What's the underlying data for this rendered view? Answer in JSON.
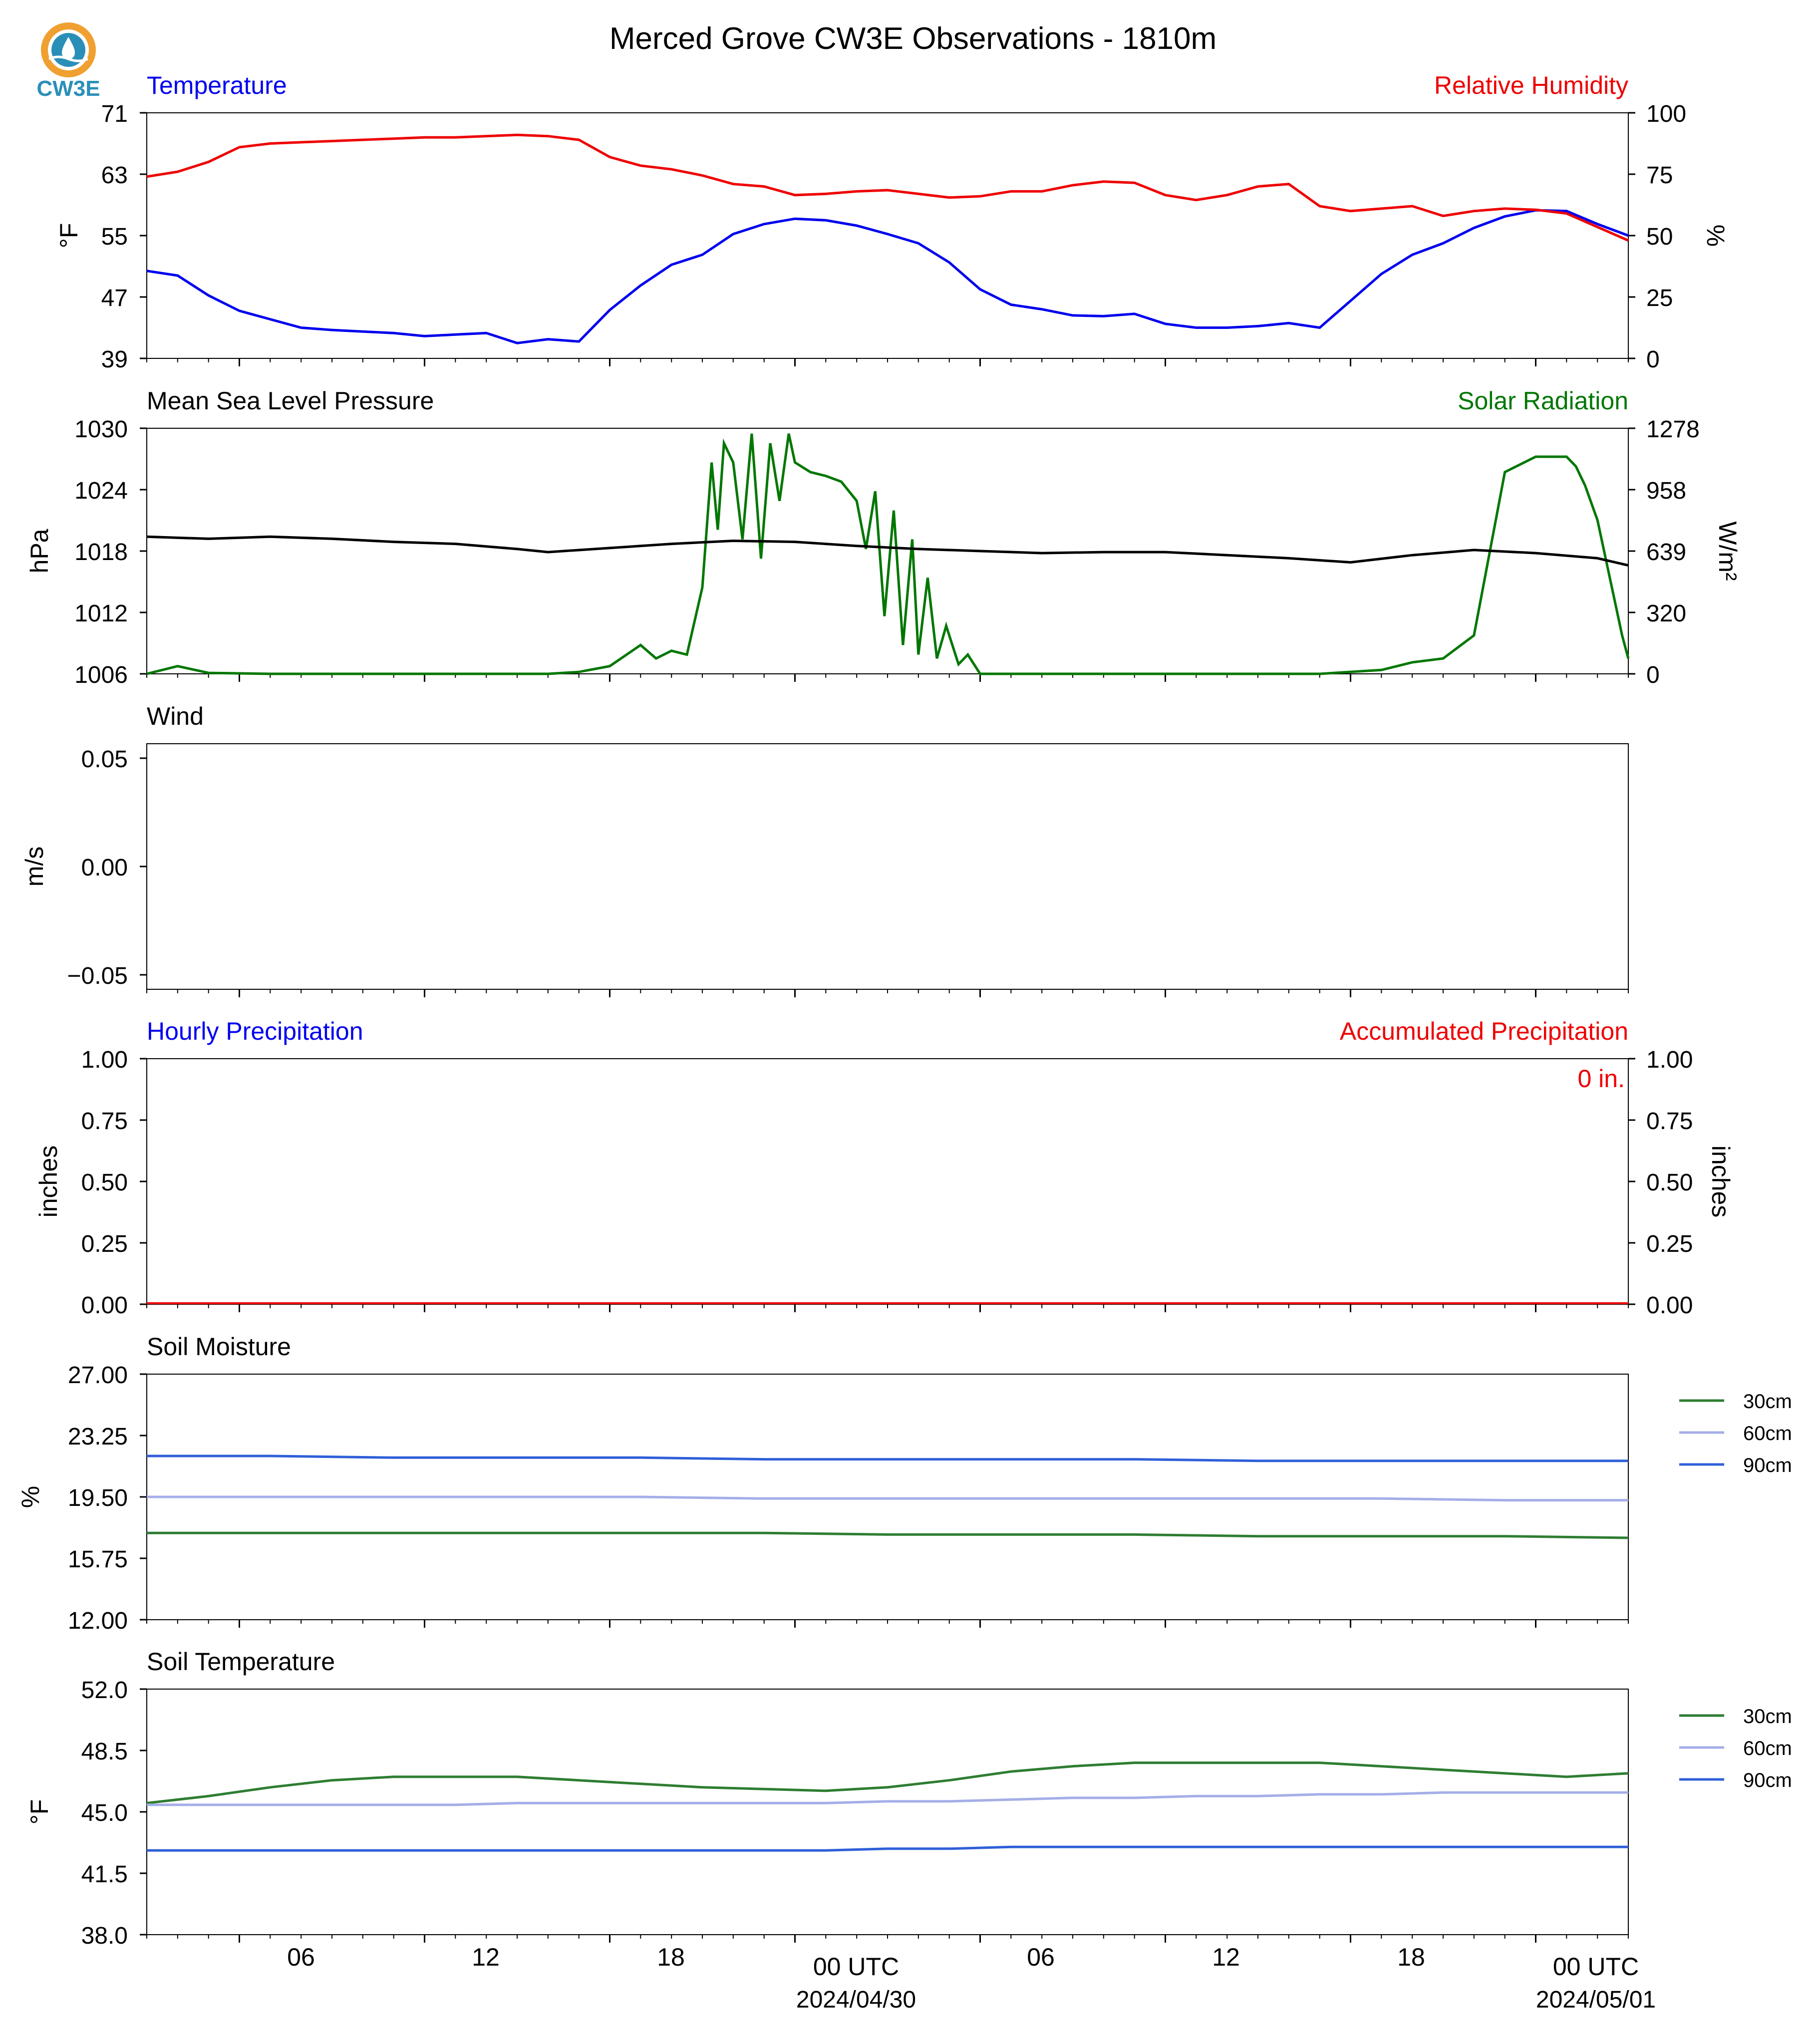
{
  "title": "Merced Grove CW3E Observations - 1810m",
  "logo": {
    "text": "CW3E",
    "colors": {
      "ring": "#f0a030",
      "water": "#2a8fb8",
      "text": "#2a8fb8"
    }
  },
  "time_axis": {
    "tick_labels": [
      "06",
      "12",
      "18",
      "00 UTC",
      "06",
      "12",
      "18",
      "00 UTC"
    ],
    "date_labels": [
      "2024/04/30",
      "2024/05/01"
    ]
  },
  "colors": {
    "temperature": "#0000ee",
    "humidity": "#ee0000",
    "pressure": "#000000",
    "solar": "#007700",
    "soil_30": "#2e7d32",
    "soil_60": "#a4aee8",
    "soil_90": "#2f5fd8"
  },
  "chart_data": [
    {
      "type": "line",
      "title_left": "Temperature",
      "title_right": "Relative Humidity",
      "ylabel": "°F",
      "ylabel_right": "%",
      "ylim": [
        39,
        71
      ],
      "ylim_right": [
        0,
        100
      ],
      "yticks": [
        "71",
        "63",
        "55",
        "47",
        "39"
      ],
      "yticks_right": [
        "100",
        "75",
        "50",
        "25",
        "0"
      ],
      "x_hours": [
        0,
        1,
        2,
        3,
        4,
        5,
        6,
        7,
        8,
        9,
        10,
        11,
        12,
        13,
        14,
        15,
        16,
        17,
        18,
        19,
        20,
        21,
        22,
        23,
        24,
        25,
        26,
        27,
        28,
        29,
        30,
        31,
        32,
        33,
        34,
        35,
        36,
        37,
        38,
        39,
        40,
        41,
        42,
        43,
        44,
        45,
        46,
        47,
        48
      ],
      "series": [
        {
          "name": "Temperature",
          "axis": "left",
          "values": [
            50.4,
            49.8,
            47.2,
            45.2,
            44.1,
            43.0,
            42.7,
            42.5,
            42.3,
            41.9,
            42.1,
            42.3,
            41.0,
            41.5,
            41.2,
            45.3,
            48.5,
            51.2,
            52.5,
            55.2,
            56.5,
            57.2,
            57.0,
            56.3,
            55.2,
            54.0,
            51.5,
            48.0,
            46.0,
            45.4,
            44.6,
            44.5,
            44.8,
            43.5,
            43.0,
            43.0,
            43.2,
            43.6,
            43.0,
            46.5,
            50.0,
            52.5,
            54.0,
            56.0,
            57.5,
            58.3,
            58.2,
            56.5,
            55.0
          ]
        },
        {
          "name": "Relative Humidity",
          "axis": "right",
          "values": [
            74.0,
            76.0,
            80.0,
            86.0,
            87.5,
            88.0,
            88.5,
            89.0,
            89.5,
            90.0,
            90.0,
            90.5,
            91.0,
            90.5,
            89.0,
            82.0,
            78.5,
            77.0,
            74.5,
            71.0,
            70.0,
            66.5,
            67.0,
            68.0,
            68.5,
            67.0,
            65.5,
            66.0,
            68.0,
            68.0,
            70.5,
            72.0,
            71.5,
            66.5,
            64.5,
            66.5,
            70.0,
            71.0,
            62.0,
            60.0,
            61.0,
            62.0,
            58.0,
            60.0,
            61.0,
            60.5,
            59.0,
            53.5,
            48.0
          ]
        }
      ]
    },
    {
      "type": "line",
      "title_left": "Mean Sea Level Pressure",
      "title_right": "Solar Radiation",
      "ylabel": "hPa",
      "ylabel_right": "W/m²",
      "ylim": [
        1006,
        1030
      ],
      "ylim_right": [
        0,
        1278
      ],
      "yticks": [
        "1030",
        "1024",
        "1018",
        "1012",
        "1006"
      ],
      "yticks_right": [
        "1278",
        "958",
        "639",
        "320",
        "0"
      ],
      "series": [
        {
          "name": "Mean Sea Level Pressure",
          "axis": "left",
          "x_hours": [
            0,
            2,
            4,
            6,
            8,
            10,
            12,
            13,
            15,
            17,
            19,
            21,
            23,
            25,
            27,
            29,
            31,
            33,
            35,
            37,
            39,
            41,
            43,
            45,
            47,
            48
          ],
          "values": [
            1019.4,
            1019.2,
            1019.4,
            1019.2,
            1018.9,
            1018.7,
            1018.2,
            1017.9,
            1018.3,
            1018.7,
            1019.0,
            1018.9,
            1018.5,
            1018.2,
            1018.0,
            1017.8,
            1017.9,
            1017.9,
            1017.6,
            1017.3,
            1016.9,
            1017.6,
            1018.1,
            1017.8,
            1017.3,
            1016.6
          ]
        },
        {
          "name": "Solar Radiation",
          "axis": "right",
          "x_hours": [
            0,
            1,
            2,
            4,
            6,
            8,
            10,
            12,
            13,
            14,
            15,
            16,
            16.5,
            17,
            17.5,
            18,
            18.3,
            18.5,
            18.7,
            19,
            19.3,
            19.6,
            19.9,
            20.2,
            20.5,
            20.8,
            21,
            21.5,
            22,
            22.5,
            23,
            23.3,
            23.6,
            23.9,
            24.2,
            24.5,
            24.8,
            25,
            25.3,
            25.6,
            25.9,
            26.3,
            26.6,
            27,
            28,
            30,
            32,
            34,
            36,
            38,
            40,
            41,
            42,
            43,
            44,
            45,
            46,
            46.3,
            46.6,
            47,
            47.4,
            47.8,
            48
          ],
          "values": [
            0,
            40,
            5,
            0,
            0,
            0,
            0,
            0,
            0,
            10,
            40,
            150,
            80,
            120,
            100,
            450,
            1100,
            750,
            1200,
            1100,
            700,
            1250,
            600,
            1200,
            900,
            1250,
            1100,
            1050,
            1030,
            1000,
            900,
            650,
            950,
            300,
            850,
            150,
            700,
            100,
            500,
            80,
            250,
            50,
            100,
            0,
            0,
            0,
            0,
            0,
            0,
            0,
            20,
            60,
            80,
            200,
            1050,
            1130,
            1130,
            1080,
            980,
            800,
            500,
            200,
            80
          ]
        }
      ]
    },
    {
      "type": "line",
      "title_left": "Wind",
      "ylabel": "m/s",
      "ylim": [
        -0.055,
        0.055
      ],
      "yticks": [
        "0.05",
        "0.00",
        "−0.05"
      ],
      "series": []
    },
    {
      "type": "bar",
      "title_left": "Hourly Precipitation",
      "title_right": "Accumulated Precipitation",
      "ylabel": "inches",
      "ylabel_right": "inches",
      "ylim": [
        0,
        1
      ],
      "yticks": [
        "1.00",
        "0.75",
        "0.50",
        "0.25",
        "0.00"
      ],
      "yticks_right": [
        "1.00",
        "0.75",
        "0.50",
        "0.25",
        "0.00"
      ],
      "annotation": "0 in.",
      "series": [
        {
          "name": "Hourly Precipitation",
          "values": [
            0
          ]
        },
        {
          "name": "Accumulated Precipitation",
          "values": [
            0
          ]
        }
      ]
    },
    {
      "type": "line",
      "title_left": "Soil Moisture",
      "ylabel": "%",
      "ylim": [
        12,
        27
      ],
      "yticks": [
        "27.00",
        "23.25",
        "19.50",
        "15.75",
        "12.00"
      ],
      "legend": "right",
      "x_hours": [
        0,
        4,
        8,
        12,
        16,
        20,
        24,
        28,
        32,
        36,
        40,
        44,
        48
      ],
      "series": [
        {
          "name": "30cm",
          "values": [
            17.3,
            17.3,
            17.3,
            17.3,
            17.3,
            17.3,
            17.2,
            17.2,
            17.2,
            17.1,
            17.1,
            17.1,
            17.0
          ]
        },
        {
          "name": "60cm",
          "values": [
            19.5,
            19.5,
            19.5,
            19.5,
            19.5,
            19.4,
            19.4,
            19.4,
            19.4,
            19.4,
            19.4,
            19.3,
            19.3
          ]
        },
        {
          "name": "90cm",
          "values": [
            22.0,
            22.0,
            21.9,
            21.9,
            21.9,
            21.8,
            21.8,
            21.8,
            21.8,
            21.7,
            21.7,
            21.7,
            21.7
          ]
        }
      ]
    },
    {
      "type": "line",
      "title_left": "Soil Temperature",
      "ylabel": "°F",
      "ylim": [
        38,
        52
      ],
      "yticks": [
        "52.0",
        "48.5",
        "45.0",
        "41.5",
        "38.0"
      ],
      "legend": "right",
      "x_hours": [
        0,
        2,
        4,
        6,
        8,
        10,
        12,
        14,
        16,
        18,
        20,
        22,
        24,
        26,
        28,
        30,
        32,
        34,
        36,
        38,
        40,
        42,
        44,
        46,
        48
      ],
      "series": [
        {
          "name": "30cm",
          "values": [
            45.5,
            45.9,
            46.4,
            46.8,
            47.0,
            47.0,
            47.0,
            46.8,
            46.6,
            46.4,
            46.3,
            46.2,
            46.4,
            46.8,
            47.3,
            47.6,
            47.8,
            47.8,
            47.8,
            47.8,
            47.6,
            47.4,
            47.2,
            47.0,
            47.2
          ]
        },
        {
          "name": "60cm",
          "values": [
            45.4,
            45.4,
            45.4,
            45.4,
            45.4,
            45.4,
            45.5,
            45.5,
            45.5,
            45.5,
            45.5,
            45.5,
            45.6,
            45.6,
            45.7,
            45.8,
            45.8,
            45.9,
            45.9,
            46.0,
            46.0,
            46.1,
            46.1,
            46.1,
            46.1
          ]
        },
        {
          "name": "90cm",
          "values": [
            42.8,
            42.8,
            42.8,
            42.8,
            42.8,
            42.8,
            42.8,
            42.8,
            42.8,
            42.8,
            42.8,
            42.8,
            42.9,
            42.9,
            43.0,
            43.0,
            43.0,
            43.0,
            43.0,
            43.0,
            43.0,
            43.0,
            43.0,
            43.0,
            43.0
          ]
        }
      ]
    }
  ]
}
